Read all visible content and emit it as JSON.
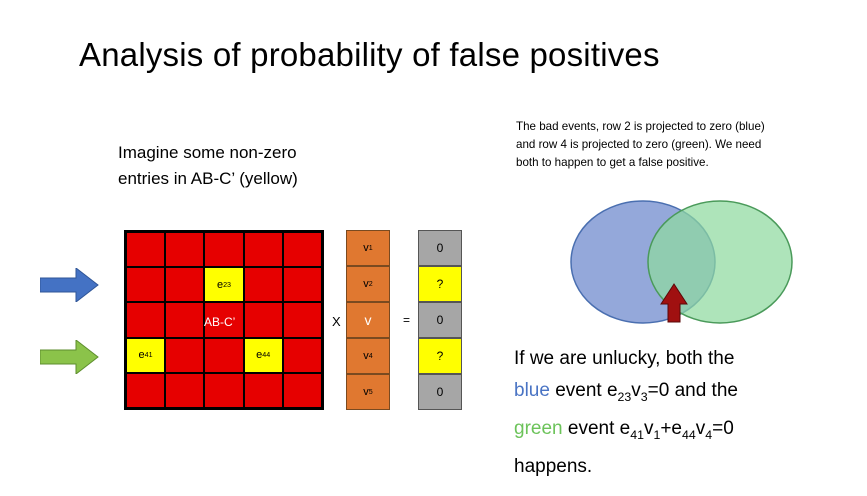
{
  "slide": {
    "title": "Analysis of probability of false positives",
    "imagine_line1": "Imagine some non-zero",
    "imagine_line2": "entries in AB-C’ (yellow)",
    "bad_events_line1": "The bad events, row 2 is projected to zero (blue)",
    "bad_events_line2": "and row 4 is projected to zero (green). We need",
    "bad_events_line3": "both to happen to get a false positive."
  },
  "matrix": {
    "label": "AB-C’",
    "e23": "e",
    "e23_sub": "23",
    "e41": "e",
    "e41_sub": "41",
    "e44": "e",
    "e44_sub": "44",
    "red": "#e60000",
    "yellow": "#ffff00"
  },
  "operators": {
    "times": "X",
    "equals": "="
  },
  "v_vector": [
    {
      "base": "v",
      "sub": "1"
    },
    {
      "base": "v",
      "sub": "2"
    },
    {
      "base": "v",
      "sub": ""
    },
    {
      "base": "v",
      "sub": "4"
    },
    {
      "base": "v",
      "sub": "5"
    }
  ],
  "result_vector": [
    "0",
    "?",
    "0",
    "?",
    "0"
  ],
  "conclusion": {
    "l1": "If we are unlucky, both the",
    "l2_word": "blue",
    "l2_rest_a": " event e",
    "l2_sub1": "23",
    "l2_rest_b": "v",
    "l2_sub2": "3",
    "l2_rest_c": "=0 and the",
    "l3_word": "green",
    "l3_rest_a": " event e",
    "l3_sub1": "41",
    "l3_rest_b": "v",
    "l3_sub2": "1",
    "l3_rest_c": "+e",
    "l3_sub3": "44",
    "l3_rest_d": "v",
    "l3_sub4": "4",
    "l3_rest_e": "=0",
    "l4": "happens."
  },
  "colors": {
    "blue_arrow": "#4472c4",
    "green_arrow": "#8bc34a",
    "venn_blue": "#8ea3d8",
    "venn_green": "#8fd9a0",
    "marker_arrow": "#a01010"
  }
}
